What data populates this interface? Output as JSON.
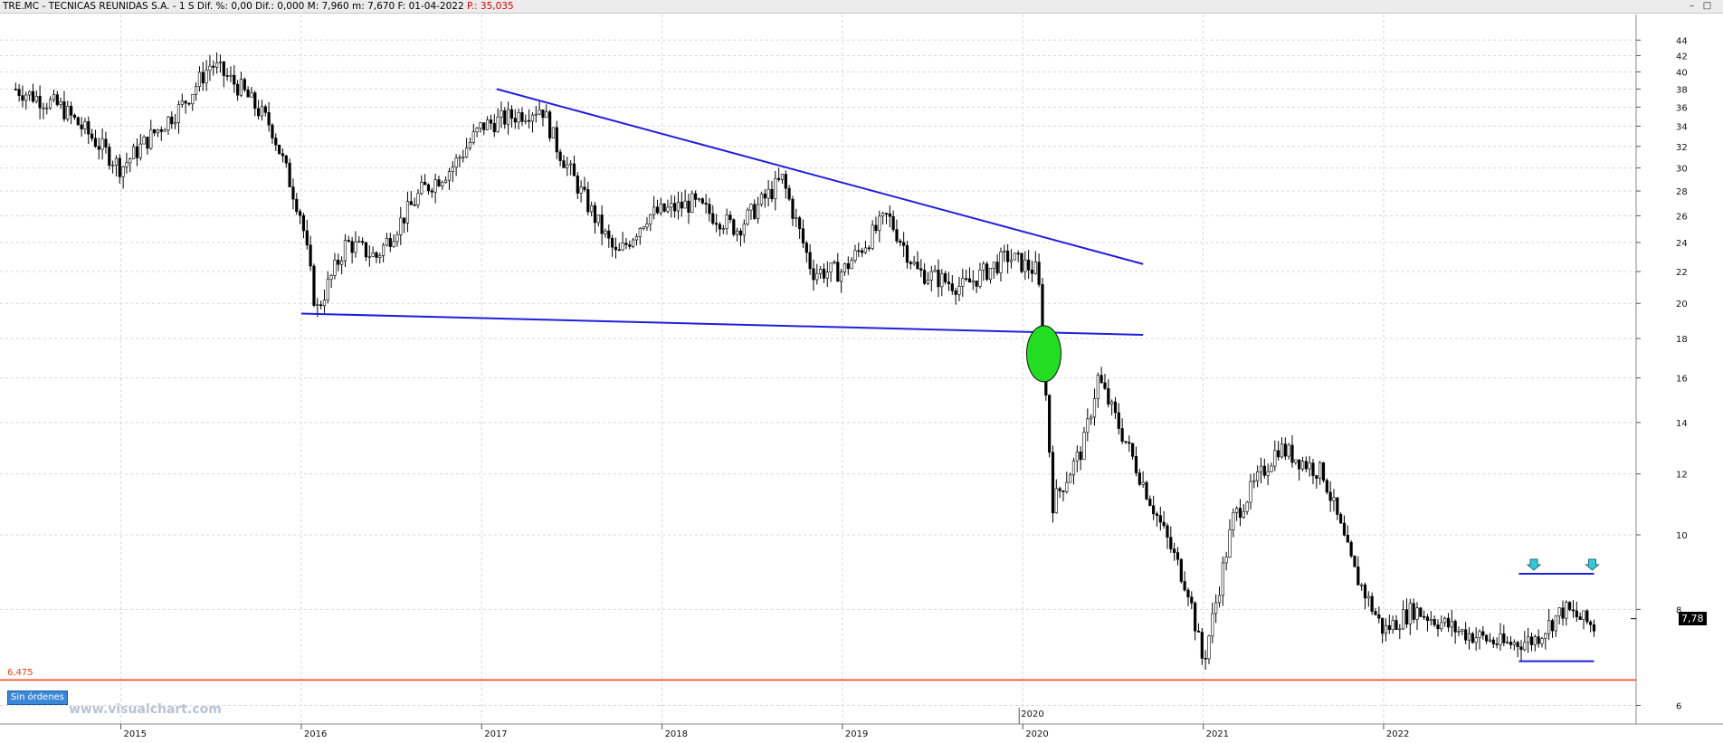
{
  "title_bar": {
    "symbol": "TRE.MC",
    "company": "TECNICAS REUNIDAS S.A.",
    "timeframe": "1 S",
    "dif_pct": "Dif. %: 0,00",
    "dif": "Dif.: 0,000",
    "max": "M: 7,960",
    "min": "m: 7,670",
    "date": "F: 01-04-2022",
    "price": "P.: 35,035",
    "minimize_icon": "minimize-icon",
    "maximize_icon": "maximize-icon"
  },
  "sin_ordenes_label": "Sin órdenes",
  "watermark": "www.visualchart.com",
  "support_level_label": "6,475",
  "last_price_label": "7,78",
  "colors": {
    "trendline": "#1f1fdc",
    "support_line": "#ff3a10",
    "breakout_marker": "#22dd22",
    "arrow_marker": "#39c7d8",
    "candle": "#000000",
    "grid": "#d8d8d8"
  },
  "chart_data": {
    "type": "candlestick",
    "scale": "log",
    "grid": true,
    "ylim": [
      5.8,
      45
    ],
    "y_ticks": [
      "44",
      "42",
      "40",
      "38",
      "36",
      "34",
      "32",
      "30",
      "28",
      "26",
      "24",
      "22",
      "20",
      "18",
      "16",
      "14",
      "12",
      "10",
      "8",
      "6"
    ],
    "x_ticks": [
      "2015",
      "2016",
      "2017",
      "2018",
      "2019",
      "2020",
      "2021",
      "2022"
    ],
    "x_extra_label": "2020",
    "close_path": [
      [
        "2014-06",
        38
      ],
      [
        "2014-09",
        36
      ],
      [
        "2014-11",
        33
      ],
      [
        "2015-01",
        30
      ],
      [
        "2015-03",
        33
      ],
      [
        "2015-05",
        36
      ],
      [
        "2015-07",
        41
      ],
      [
        "2015-09",
        38
      ],
      [
        "2015-11",
        34
      ],
      [
        "2016-01",
        26
      ],
      [
        "2016-02",
        19.5
      ],
      [
        "2016-04",
        24
      ],
      [
        "2016-06",
        23
      ],
      [
        "2016-09",
        28
      ],
      [
        "2016-11",
        30
      ],
      [
        "2017-01",
        34
      ],
      [
        "2017-03",
        35
      ],
      [
        "2017-05",
        36
      ],
      [
        "2017-06",
        32
      ],
      [
        "2017-08",
        27
      ],
      [
        "2017-10",
        23
      ],
      [
        "2017-12",
        26
      ],
      [
        "2018-03",
        27
      ],
      [
        "2018-06",
        25
      ],
      [
        "2018-09",
        29
      ],
      [
        "2018-11",
        22
      ],
      [
        "2019-01",
        22
      ],
      [
        "2019-04",
        26
      ],
      [
        "2019-06",
        22
      ],
      [
        "2019-09",
        21
      ],
      [
        "2019-12",
        23
      ],
      [
        "2020-02",
        22
      ],
      [
        "2020-03",
        11
      ],
      [
        "2020-05",
        13
      ],
      [
        "2020-06",
        16
      ],
      [
        "2020-08",
        13
      ],
      [
        "2020-10",
        10.5
      ],
      [
        "2020-12",
        8.5
      ],
      [
        "2021-01",
        6.8
      ],
      [
        "2021-03",
        10.5
      ],
      [
        "2021-06",
        13
      ],
      [
        "2021-09",
        12
      ],
      [
        "2021-11",
        9
      ],
      [
        "2022-01",
        7.5
      ],
      [
        "2022-03",
        8
      ],
      [
        "2022-06",
        7.5
      ],
      [
        "2022-09",
        7.2
      ],
      [
        "2022-11",
        7.3
      ],
      [
        "2023-01",
        8
      ],
      [
        "2023-03",
        7.6
      ]
    ],
    "trendlines": [
      {
        "name": "descending-resistance",
        "from": [
          "2017-02",
          38
        ],
        "to": [
          "2020-09",
          22.5
        ]
      },
      {
        "name": "lower-support",
        "from": [
          "2016-01",
          19.4
        ],
        "to": [
          "2020-09",
          18.2
        ]
      },
      {
        "name": "range-top",
        "from": [
          "2022-10",
          8.9
        ],
        "to": [
          "2023-03",
          8.9
        ]
      },
      {
        "name": "range-bottom",
        "from": [
          "2022-10",
          6.85
        ],
        "to": [
          "2023-03",
          6.85
        ]
      }
    ],
    "horizontal_level": 6.475,
    "last_price": 7.78
  }
}
